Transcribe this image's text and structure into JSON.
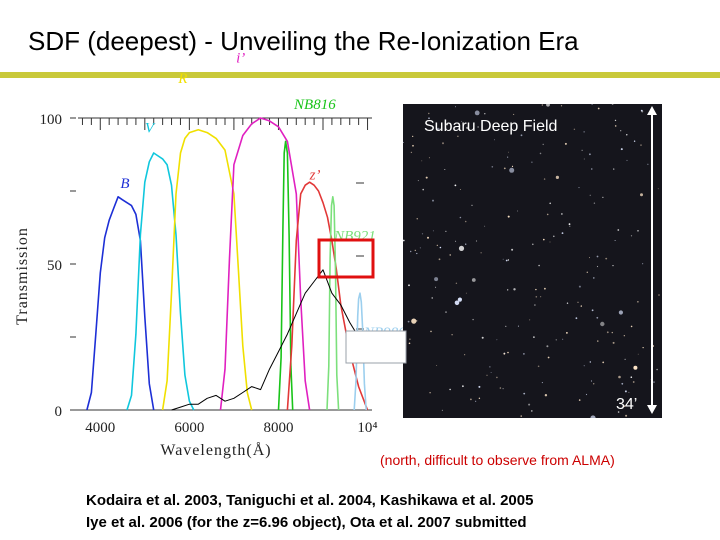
{
  "slide": {
    "title": "SDF (deepest) - Unveiling the Re-Ionization Era",
    "accent_color": "#c9c93a"
  },
  "image_panel": {
    "field_label": "Subaru Deep Field",
    "scale_label": "34’",
    "note": "(north, difficult to observe from ALMA)",
    "note_color": "#cc0000"
  },
  "credits": {
    "line1": "Kodaira et al. 2003, Taniguchi et al. 2004, Kashikawa et al. 2005",
    "line2": "Iye et al. 2006 (for the z=6.96 object), Ota et al. 2007 submitted"
  },
  "chart_data": {
    "type": "line",
    "xlabel": "Wavelength(Å)",
    "ylabel": "Transmission",
    "xlim": [
      3500,
      10100
    ],
    "ylim": [
      0,
      100
    ],
    "x_ticks": [
      4000,
      6000,
      8000,
      10000
    ],
    "x_tick_labels": [
      "4000",
      "6000",
      "8000",
      "10⁴"
    ],
    "y_ticks": [
      0,
      50,
      100
    ],
    "y_tick_labels": [
      "0",
      "50",
      "100"
    ],
    "grid": false,
    "series": [
      {
        "name": "B",
        "color": "#1d2fd6",
        "label_at": [
          4450,
          76
        ],
        "x": [
          3700,
          3800,
          3900,
          4000,
          4100,
          4200,
          4300,
          4400,
          4500,
          4600,
          4700,
          4800,
          4900,
          5000,
          5100,
          5200
        ],
        "y": [
          0,
          6,
          26,
          47,
          59,
          65,
          69,
          73,
          72,
          71,
          70,
          67,
          58,
          32,
          9,
          0
        ]
      },
      {
        "name": "V",
        "color": "#10c7dd",
        "label_at": [
          5000,
          95
        ],
        "x": [
          4600,
          4700,
          4800,
          4900,
          5000,
          5100,
          5200,
          5300,
          5400,
          5500,
          5600,
          5700,
          5800,
          5900,
          6000,
          6100
        ],
        "y": [
          0,
          5,
          26,
          60,
          78,
          85,
          88,
          87,
          86,
          84,
          77,
          60,
          33,
          12,
          3,
          0
        ]
      },
      {
        "name": "R",
        "color": "#f0e000",
        "label_at": [
          5750,
          112
        ],
        "x": [
          5400,
          5500,
          5600,
          5700,
          5800,
          5900,
          6000,
          6200,
          6400,
          6600,
          6800,
          7000,
          7100,
          7200,
          7300,
          7400
        ],
        "y": [
          0,
          10,
          40,
          74,
          88,
          93,
          95,
          96,
          95,
          93,
          89,
          74,
          48,
          22,
          6,
          0
        ]
      },
      {
        "name": "i’",
        "color": "#e020c0",
        "label_at": [
          7050,
          119
        ],
        "x": [
          6700,
          6800,
          6900,
          7000,
          7200,
          7400,
          7600,
          7800,
          8000,
          8200,
          8400,
          8500,
          8600,
          8700
        ],
        "y": [
          0,
          14,
          52,
          84,
          94,
          98,
          100,
          99,
          97,
          92,
          74,
          38,
          10,
          0
        ]
      },
      {
        "name": "NB816",
        "color": "#19c419",
        "label_at": [
          8350,
          103
        ],
        "x": [
          8000,
          8060,
          8100,
          8130,
          8160,
          8200,
          8240,
          8280,
          8320
        ],
        "y": [
          0,
          18,
          62,
          88,
          92,
          88,
          60,
          15,
          0
        ]
      },
      {
        "name": "z’",
        "color": "#e23838",
        "label_at": [
          8700,
          79
        ],
        "x": [
          8200,
          8300,
          8400,
          8500,
          8600,
          8700,
          8800,
          8900,
          9000,
          9100,
          9200,
          9300,
          9400,
          9600,
          9800,
          10000
        ],
        "y": [
          0,
          22,
          58,
          74,
          77,
          78,
          77,
          75,
          71,
          66,
          58,
          48,
          36,
          20,
          8,
          0
        ]
      },
      {
        "name": "NB921",
        "color": "#7ce07c",
        "label_at": [
          9250,
          58
        ],
        "x": [
          9090,
          9130,
          9160,
          9190,
          9220,
          9250,
          9280,
          9310,
          9350
        ],
        "y": [
          0,
          15,
          52,
          70,
          73,
          70,
          48,
          12,
          0
        ]
      },
      {
        "name": "NB980",
        "color": "#9ccfee",
        "label_at": [
          9920,
          25
        ],
        "x": [
          9700,
          9740,
          9780,
          9800,
          9830,
          9860,
          9890,
          9930,
          9970
        ],
        "y": [
          0,
          10,
          32,
          38,
          40,
          37,
          28,
          9,
          0
        ]
      },
      {
        "name": "",
        "color": "#000000",
        "x": [
          5600,
          5800,
          6000,
          6200,
          6400,
          6600,
          6800,
          7000,
          7200,
          7400,
          7600,
          7800,
          8000,
          8200,
          8400,
          8600,
          8800,
          9000,
          9200,
          9400,
          9600,
          9800,
          10000
        ],
        "y": [
          0,
          1,
          2,
          2,
          4,
          5,
          3,
          4,
          6,
          8,
          7,
          14,
          20,
          26,
          33,
          40,
          44,
          48,
          40,
          36,
          30,
          25,
          18
        ]
      }
    ]
  }
}
